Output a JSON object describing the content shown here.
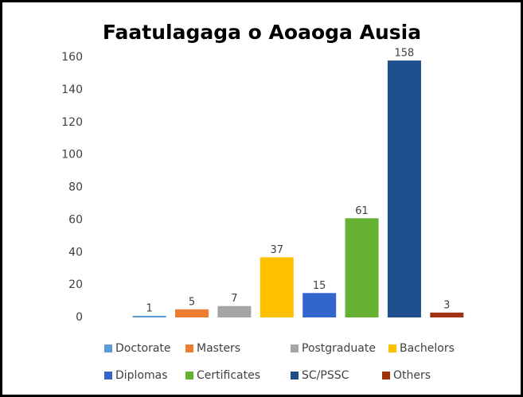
{
  "chart_data": {
    "type": "bar",
    "title": "Faatulagaga o Aoaoga Ausia",
    "categories": [
      "Doctorate",
      "Masters",
      "Postgraduate",
      "Bachelors",
      "Diplomas",
      "Certificates",
      "SC/PSSC",
      "Others"
    ],
    "values": [
      1,
      5,
      7,
      37,
      15,
      61,
      158,
      3
    ],
    "colors": [
      "#5b9bd5",
      "#ed7d31",
      "#a5a5a5",
      "#ffc000",
      "#3366cc",
      "#66b032",
      "#1f4e8c",
      "#a0320f"
    ],
    "ylim": [
      0,
      160
    ],
    "yticks": [
      0,
      20,
      40,
      60,
      80,
      100,
      120,
      140,
      160
    ],
    "grid": false,
    "legend": "bottom"
  }
}
